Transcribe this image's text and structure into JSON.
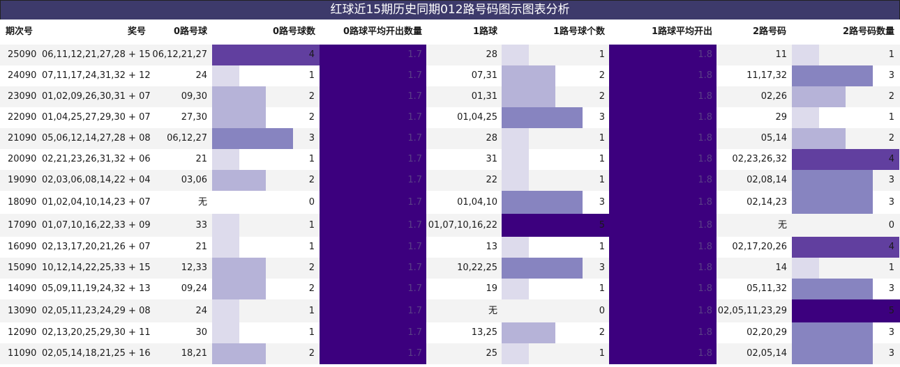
{
  "title": "红球近15期历史同期012路号码图示图表分析",
  "headers": {
    "period": "期次号",
    "prize": "奖号",
    "r0_balls": "0路号球",
    "r0_count": "0路号球数",
    "r0_avg": "0路球平均开出数量",
    "r1_balls": "1路球",
    "r1_count": "1路号球个数",
    "r1_avg": "1路球平均开出",
    "r2_balls": "2路号码",
    "r2_count": "2路号码数量"
  },
  "colors": {
    "title_bg": "#3d3a6b",
    "count_scale": [
      "#ffffff",
      "#dddbec",
      "#b6b3d8",
      "#8784c0",
      "#613f9f",
      "#3c007e"
    ],
    "avg_fill": "#3c007e"
  },
  "chart_data": {
    "type": "table",
    "r0_avg": "1.7",
    "r1_avg": "1.8",
    "max_count": 5,
    "rows": [
      {
        "period": "25090",
        "prize": "06,11,12,21,27,28 + 15",
        "r0": "06,12,21,27",
        "c0": 4,
        "r1": "28",
        "c1": 1,
        "r2": "11",
        "c2": 1
      },
      {
        "period": "24090",
        "prize": "07,11,17,24,31,32 + 12",
        "r0": "24",
        "c0": 1,
        "r1": "07,31",
        "c1": 2,
        "r2": "11,17,32",
        "c2": 3
      },
      {
        "period": "23090",
        "prize": "01,02,09,26,30,31 + 07",
        "r0": "09,30",
        "c0": 2,
        "r1": "01,31",
        "c1": 2,
        "r2": "02,26",
        "c2": 2
      },
      {
        "period": "22090",
        "prize": "01,04,25,27,29,30 + 07",
        "r0": "27,30",
        "c0": 2,
        "r1": "01,04,25",
        "c1": 3,
        "r2": "29",
        "c2": 1
      },
      {
        "period": "21090",
        "prize": "05,06,12,14,27,28 + 08",
        "r0": "06,12,27",
        "c0": 3,
        "r1": "28",
        "c1": 1,
        "r2": "05,14",
        "c2": 2
      },
      {
        "period": "20090",
        "prize": "02,21,23,26,31,32 + 06",
        "r0": "21",
        "c0": 1,
        "r1": "31",
        "c1": 1,
        "r2": "02,23,26,32",
        "c2": 4
      },
      {
        "period": "19090",
        "prize": "02,03,06,08,14,22 + 04",
        "r0": "03,06",
        "c0": 2,
        "r1": "22",
        "c1": 1,
        "r2": "02,08,14",
        "c2": 3
      },
      {
        "period": "18090",
        "prize": "01,02,04,10,14,23 + 07",
        "r0": "无",
        "c0": 0,
        "r1": "01,04,10",
        "c1": 3,
        "r2": "02,14,23",
        "c2": 3
      },
      {
        "period": "17090",
        "prize": "01,07,10,16,22,33 + 09",
        "r0": "33",
        "c0": 1,
        "r1": "01,07,10,16,22",
        "c1": 5,
        "r2": "无",
        "c2": 0
      },
      {
        "period": "16090",
        "prize": "02,13,17,20,21,26 + 07",
        "r0": "21",
        "c0": 1,
        "r1": "13",
        "c1": 1,
        "r2": "02,17,20,26",
        "c2": 4
      },
      {
        "period": "15090",
        "prize": "10,12,14,22,25,33 + 15",
        "r0": "12,33",
        "c0": 2,
        "r1": "10,22,25",
        "c1": 3,
        "r2": "14",
        "c2": 1
      },
      {
        "period": "14090",
        "prize": "05,09,11,19,24,32 + 13",
        "r0": "09,24",
        "c0": 2,
        "r1": "19",
        "c1": 1,
        "r2": "05,11,32",
        "c2": 3
      },
      {
        "period": "13090",
        "prize": "02,05,11,23,24,29 + 08",
        "r0": "24",
        "c0": 1,
        "r1": "无",
        "c1": 0,
        "r2": "02,05,11,23,29",
        "c2": 5
      },
      {
        "period": "12090",
        "prize": "02,13,20,25,29,30 + 11",
        "r0": "30",
        "c0": 1,
        "r1": "13,25",
        "c1": 2,
        "r2": "02,20,29",
        "c2": 3
      },
      {
        "period": "11090",
        "prize": "02,05,14,18,21,25 + 16",
        "r0": "18,21",
        "c0": 2,
        "r1": "25",
        "c1": 1,
        "r2": "02,05,14",
        "c2": 3
      }
    ]
  }
}
